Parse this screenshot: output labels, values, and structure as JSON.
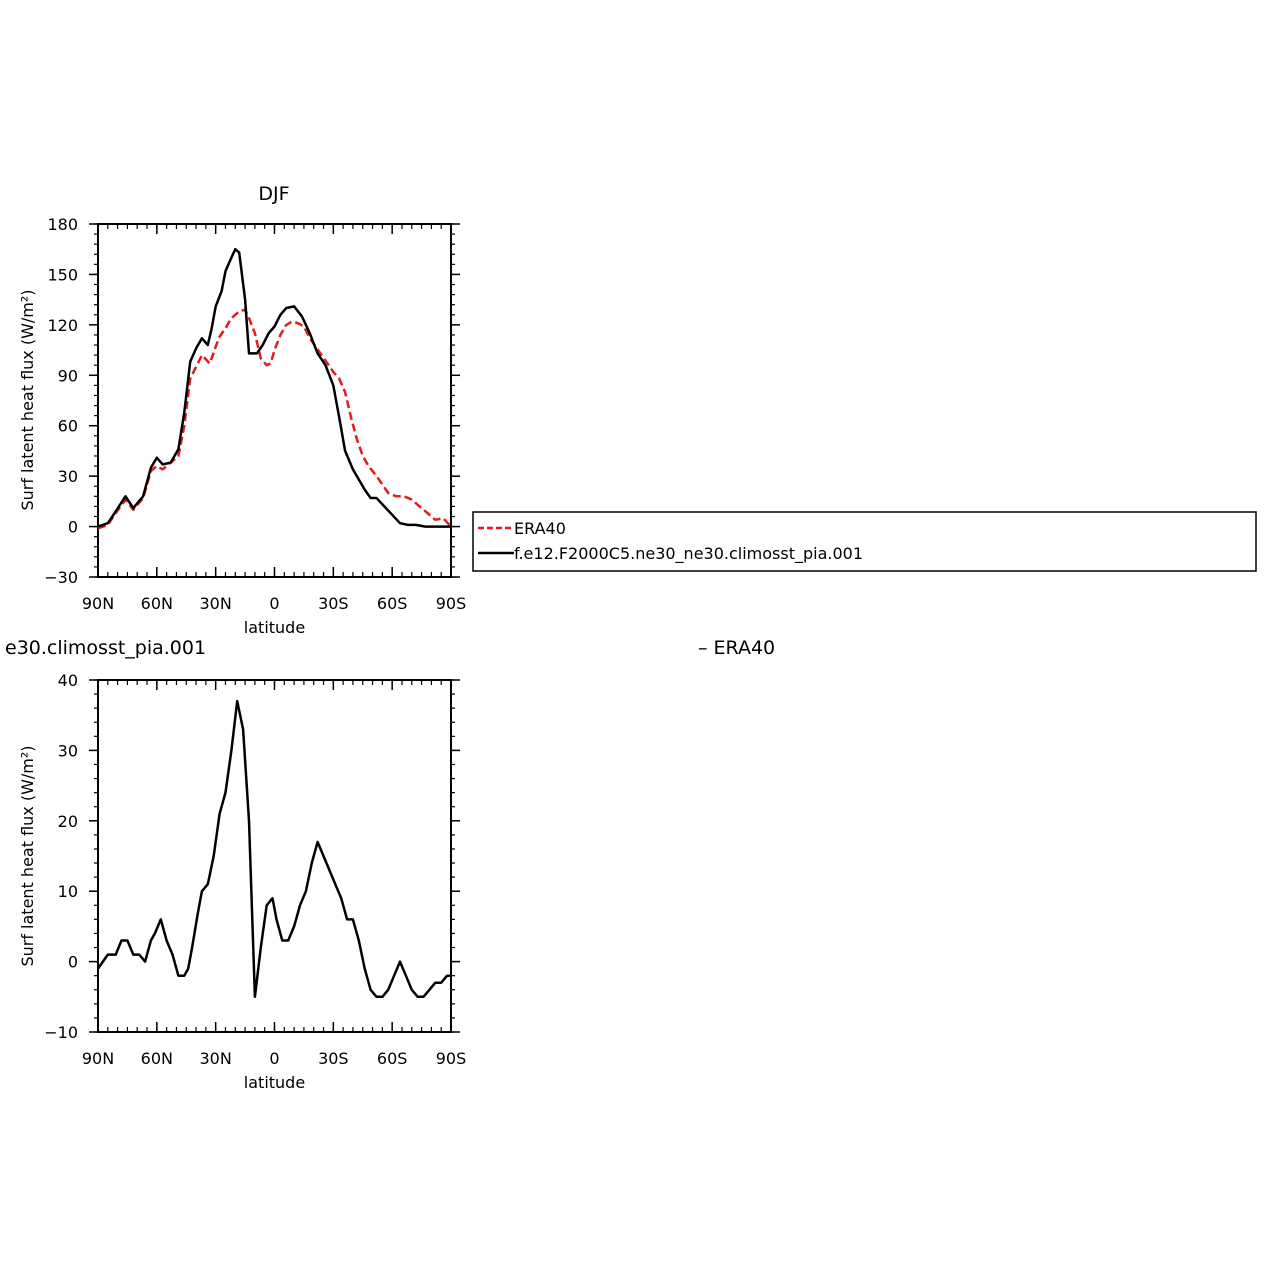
{
  "figure": {
    "top_title": "DJF",
    "bottom_left_title": "e30.climosst_pia.001",
    "bottom_right_title": "– ERA40"
  },
  "legend": {
    "entries": [
      {
        "label": "ERA40",
        "color": "#e41a1c",
        "dash": true
      },
      {
        "label": "f.e12.F2000C5.ne30_ne30.climosst_pia.001",
        "color": "#000000",
        "dash": false
      }
    ]
  },
  "chart_data": [
    {
      "type": "line",
      "title": "DJF",
      "xlabel": "latitude",
      "ylabel": "Surf latent heat flux (W/m²)",
      "xlim": [
        90,
        -90
      ],
      "ylim": [
        -30,
        180
      ],
      "xticks": [
        90,
        60,
        30,
        0,
        -30,
        -60,
        -90
      ],
      "xtick_labels": [
        "90N",
        "60N",
        "30N",
        "0",
        "30S",
        "60S",
        "90S"
      ],
      "yticks": [
        -30,
        0,
        30,
        60,
        90,
        120,
        150,
        180
      ],
      "ytick_labels": [
        "−30",
        "0",
        "30",
        "60",
        "90",
        "120",
        "150",
        "180"
      ],
      "legend_position": "right",
      "series": [
        {
          "name": "ERA40",
          "color": "#e41a1c",
          "dashed": true,
          "x": [
            90,
            85,
            81,
            76,
            72,
            67,
            63,
            60,
            57,
            53,
            49,
            46,
            43,
            40,
            37,
            33,
            30,
            28,
            25,
            22,
            18,
            15,
            13,
            10,
            7,
            4,
            2,
            0,
            -3,
            -6,
            -9,
            -12,
            -15,
            -18,
            -21,
            -24,
            -27,
            -30,
            -33,
            -36,
            -39,
            -42,
            -45,
            -48,
            -52,
            -55,
            -58,
            -62,
            -66,
            -70,
            -74,
            -78,
            -82,
            -86,
            -90
          ],
          "y": [
            -1,
            1,
            8,
            16,
            10,
            17,
            33,
            36,
            34,
            38,
            42,
            60,
            88,
            95,
            102,
            97,
            107,
            113,
            118,
            124,
            128,
            129,
            124,
            115,
            100,
            96,
            97,
            105,
            114,
            120,
            122,
            121,
            119,
            112,
            107,
            102,
            97,
            92,
            88,
            80,
            65,
            52,
            42,
            36,
            30,
            25,
            20,
            18,
            18,
            16,
            12,
            8,
            4,
            5,
            0
          ]
        },
        {
          "name": "f.e12.F2000C5.ne30_ne30.climosst_pia.001",
          "color": "#000000",
          "dashed": false,
          "x": [
            90,
            85,
            81,
            76,
            72,
            67,
            63,
            60,
            57,
            53,
            49,
            46,
            43,
            40,
            37,
            34,
            32,
            30,
            27,
            25,
            22,
            20,
            18,
            15,
            13,
            9,
            6,
            3,
            0,
            -3,
            -6,
            -10,
            -14,
            -18,
            -22,
            -26,
            -30,
            -33,
            -36,
            -40,
            -43,
            -46,
            -49,
            -52,
            -56,
            -60,
            -64,
            -68,
            -72,
            -77,
            -81,
            -85,
            -88,
            -90
          ],
          "y": [
            0,
            2,
            9,
            18,
            11,
            18,
            35,
            41,
            37,
            38,
            46,
            68,
            98,
            106,
            112,
            108,
            118,
            131,
            140,
            152,
            160,
            165,
            163,
            135,
            103,
            103,
            108,
            115,
            119,
            126,
            130,
            131,
            125,
            115,
            103,
            96,
            84,
            65,
            45,
            34,
            28,
            22,
            17,
            17,
            12,
            7,
            2,
            1,
            1,
            0,
            0,
            0,
            0,
            0
          ]
        }
      ]
    },
    {
      "type": "line",
      "title": "e30.climosst_pia.001   – ERA40",
      "xlabel": "latitude",
      "ylabel": "Surf latent heat flux (W/m²)",
      "xlim": [
        90,
        -90
      ],
      "ylim": [
        -10,
        40
      ],
      "xticks": [
        90,
        60,
        30,
        0,
        -30,
        -60,
        -90
      ],
      "xtick_labels": [
        "90N",
        "60N",
        "30N",
        "0",
        "30S",
        "60S",
        "90S"
      ],
      "yticks": [
        -10,
        0,
        10,
        20,
        30,
        40
      ],
      "ytick_labels": [
        "−10",
        "0",
        "10",
        "20",
        "30",
        "40"
      ],
      "series": [
        {
          "color": "#000000",
          "dashed": false,
          "x": [
            90,
            85,
            81,
            78,
            75,
            72,
            69,
            66,
            63,
            61,
            58,
            55,
            52,
            49,
            46,
            44,
            42,
            39,
            37,
            34,
            31,
            28,
            25,
            22,
            19,
            16,
            13,
            10,
            7,
            4,
            1,
            -1,
            -4,
            -7,
            -10,
            -13,
            -16,
            -19,
            -22,
            -25,
            -28,
            -31,
            -34,
            -37,
            -40,
            -43,
            -46,
            -49,
            -52,
            -55,
            -58,
            -61,
            -64,
            -67,
            -70,
            -73,
            -76,
            -79,
            -82,
            -85,
            -88,
            -90
          ],
          "y": [
            -1,
            1,
            1,
            3,
            3,
            1,
            1,
            0,
            3,
            4,
            6,
            3,
            1,
            -2,
            -2,
            -1,
            2,
            7,
            10,
            11,
            15,
            21,
            24,
            30,
            37,
            33,
            20,
            -5,
            2,
            8,
            9,
            6,
            3,
            3,
            5,
            8,
            10,
            14,
            17,
            15,
            13,
            11,
            9,
            6,
            6,
            3,
            -1,
            -4,
            -5,
            -5,
            -4,
            -2,
            0,
            -2,
            -4,
            -5,
            -5,
            -4,
            -3,
            -3,
            -2,
            -2
          ]
        }
      ]
    }
  ]
}
